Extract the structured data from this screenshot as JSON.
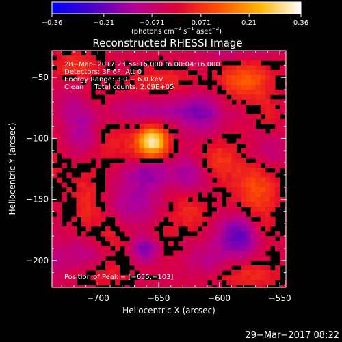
{
  "chart_data": {
    "type": "heatmap",
    "title": "Reconstructed RHESSI Image",
    "xlabel": "Heliocentric X (arcsec)",
    "ylabel": "Heliocentric Y (arcsec)",
    "xlim": [
      -738,
      -545
    ],
    "ylim": [
      -222,
      -28
    ],
    "x_ticks": [
      -700,
      -650,
      -600,
      -550
    ],
    "y_ticks": [
      -50,
      -100,
      -150,
      -200
    ],
    "x_tick_labels": [
      "−700",
      "−650",
      "−600",
      "−550"
    ],
    "y_tick_labels": [
      "−50",
      "−100",
      "−150",
      "−200"
    ],
    "colorbar": {
      "range": [
        -0.36,
        0.36
      ],
      "ticks": [
        -0.36,
        -0.21,
        -0.071,
        0.071,
        0.21,
        0.36
      ],
      "tick_labels": [
        "−0.36",
        "−0.21",
        "−0.071",
        "0.071",
        "0.21",
        "0.36"
      ],
      "unit_parts": [
        "(photons cm",
        "−2",
        " s",
        "−1",
        " asec",
        "−2",
        ")"
      ],
      "stops": [
        "#0000ff",
        "#4b00c8",
        "#b40096",
        "#e10032",
        "#ff5000",
        "#ffb400",
        "#ffffff"
      ]
    },
    "annotations": [
      "28−Mar−2017 23:54:16.000 to 00:04:16.000",
      "Detectors: 3F 6F, Att 0",
      "Energy Range: 3.0 − 6.0 keV",
      "Clean     Total counts: 2.09E+05"
    ],
    "peak_label": "Position of Peak = [−655,−103]",
    "peak": [
      -655,
      -103
    ],
    "grid": false,
    "sources": [
      {
        "x": -655,
        "y": -103,
        "sx": 9,
        "sy": 9,
        "value": 0.36
      },
      {
        "x": -578,
        "y": -52,
        "sx": 15,
        "sy": 12,
        "value": 0.16
      },
      {
        "x": -718,
        "y": -40,
        "sx": 14,
        "sy": 8,
        "value": 0.11
      },
      {
        "x": -650,
        "y": -52,
        "sx": 22,
        "sy": 8,
        "value": 0.08
      },
      {
        "x": -560,
        "y": -82,
        "sx": 8,
        "sy": 12,
        "value": 0.06
      },
      {
        "x": -705,
        "y": -68,
        "sx": 10,
        "sy": 8,
        "value": 0.045
      },
      {
        "x": -570,
        "y": -140,
        "sx": 14,
        "sy": 16,
        "value": 0.13
      },
      {
        "x": -600,
        "y": -117,
        "sx": 12,
        "sy": 12,
        "value": 0.1
      },
      {
        "x": -625,
        "y": -160,
        "sx": 12,
        "sy": 12,
        "value": 0.085
      },
      {
        "x": -650,
        "y": -185,
        "sx": 10,
        "sy": 10,
        "value": 0.08
      },
      {
        "x": -575,
        "y": -212,
        "sx": 20,
        "sy": 8,
        "value": 0.09
      },
      {
        "x": -710,
        "y": -150,
        "sx": 10,
        "sy": 18,
        "value": 0.085
      },
      {
        "x": -690,
        "y": -185,
        "sx": 12,
        "sy": 14,
        "value": 0.08
      },
      {
        "x": -690,
        "y": -100,
        "sx": 14,
        "sy": 14,
        "value": 0.07
      },
      {
        "x": -670,
        "y": -115,
        "sx": 10,
        "sy": 8,
        "value": 0.04
      },
      {
        "x": -695,
        "y": -210,
        "sx": 20,
        "sy": 8,
        "value": 0.06
      },
      {
        "x": -565,
        "y": -175,
        "sx": 10,
        "sy": 16,
        "value": 0.06
      },
      {
        "x": -740,
        "y": -125,
        "sx": 8,
        "sy": 22,
        "value": 0.05
      },
      {
        "x": -660,
        "y": -190,
        "sx": 9,
        "sy": 8,
        "value": -0.19
      },
      {
        "x": -583,
        "y": -180,
        "sx": 12,
        "sy": 12,
        "value": -0.2
      },
      {
        "x": -655,
        "y": -78,
        "sx": 34,
        "sy": 7,
        "value": -0.09
      },
      {
        "x": -660,
        "y": -128,
        "sx": 14,
        "sy": 10,
        "value": -0.13
      },
      {
        "x": -712,
        "y": -95,
        "sx": 10,
        "sy": 12,
        "value": -0.11
      },
      {
        "x": -615,
        "y": -80,
        "sx": 12,
        "sy": 12,
        "value": -0.11
      },
      {
        "x": -705,
        "y": -195,
        "sx": 14,
        "sy": 10,
        "value": -0.09
      },
      {
        "x": -625,
        "y": -130,
        "sx": 10,
        "sy": 10,
        "value": -0.11
      },
      {
        "x": -670,
        "y": -155,
        "sx": 14,
        "sy": 12,
        "value": -0.1
      },
      {
        "x": -560,
        "y": -110,
        "sx": 10,
        "sy": 12,
        "value": -0.07
      },
      {
        "x": -610,
        "y": -200,
        "sx": 12,
        "sy": 10,
        "value": -0.07
      },
      {
        "x": -735,
        "y": -200,
        "sx": 10,
        "sy": 12,
        "value": -0.05
      },
      {
        "x": -720,
        "y": -70,
        "sx": 10,
        "sy": 10,
        "value": -0.06
      },
      {
        "x": -585,
        "y": -30,
        "sx": 20,
        "sy": 6,
        "value": -0.06
      }
    ],
    "background": -0.03
  },
  "footer": {
    "timestamp": "29−Mar−2017 08:22"
  }
}
